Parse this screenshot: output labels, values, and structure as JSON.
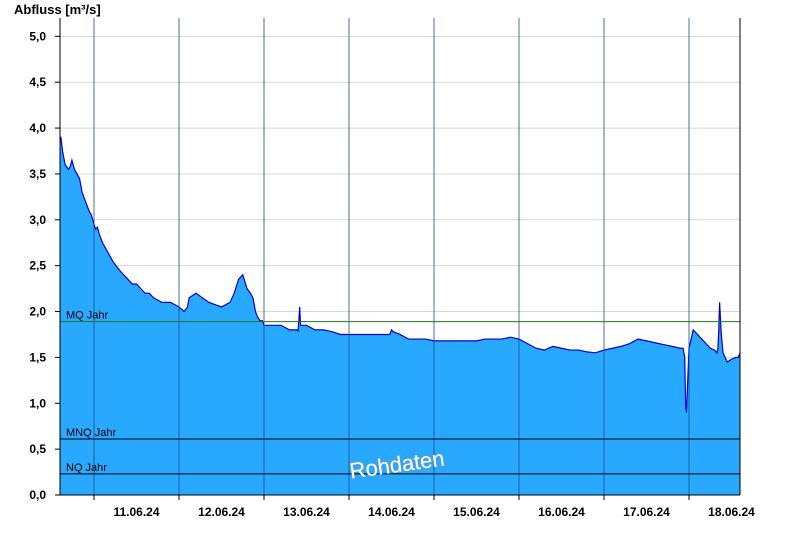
{
  "chart_data": {
    "type": "area",
    "ylabel": "Abfluss [m³/s]",
    "ylim": [
      0,
      5.2
    ],
    "y_ticks": [
      "0,0",
      "0,5",
      "1,0",
      "1,5",
      "2,0",
      "2,5",
      "3,0",
      "3,5",
      "4,0",
      "4,5",
      "5,0"
    ],
    "x_ticks": [
      "11.06.24",
      "12.06.24",
      "13.06.24",
      "14.06.24",
      "15.06.24",
      "16.06.24",
      "17.06.24",
      "18.06.24"
    ],
    "x_range_days": [
      10.6,
      18.6
    ],
    "grid": "horizontal",
    "series": [
      {
        "x": [
          10.6,
          10.61,
          10.63,
          10.66,
          10.7,
          10.72,
          10.74,
          10.77,
          10.8,
          10.83,
          10.86,
          10.9,
          10.94,
          10.97,
          11.0,
          11.02,
          11.04,
          11.06,
          11.08,
          11.1,
          11.13,
          11.16,
          11.19,
          11.22,
          11.26,
          11.3,
          11.35,
          11.4,
          11.45,
          11.5,
          11.55,
          11.6,
          11.65,
          11.7,
          11.8,
          11.9,
          12.0,
          12.06,
          12.1,
          12.12,
          12.2,
          12.35,
          12.5,
          12.6,
          12.65,
          12.7,
          12.75,
          12.8,
          12.84,
          12.87,
          12.89,
          12.9,
          12.92,
          12.95,
          12.98,
          13.0,
          13.03,
          13.06,
          13.1,
          13.15,
          13.2,
          13.3,
          13.4,
          13.4,
          13.41,
          13.42,
          13.43,
          13.5,
          13.6,
          13.7,
          13.8,
          13.9,
          14.0,
          14.1,
          14.2,
          14.3,
          14.4,
          14.48,
          14.5,
          14.52,
          14.6,
          14.7,
          14.8,
          14.9,
          15.0,
          15.1,
          15.2,
          15.3,
          15.4,
          15.5,
          15.6,
          15.7,
          15.8,
          15.9,
          16.0,
          16.1,
          16.2,
          16.3,
          16.35,
          16.4,
          16.5,
          16.6,
          16.7,
          16.8,
          16.9,
          17.0,
          17.1,
          17.2,
          17.3,
          17.4,
          17.5,
          17.6,
          17.7,
          17.8,
          17.9,
          17.93,
          17.95,
          17.96,
          17.97,
          18.0,
          18.05,
          18.1,
          18.15,
          18.2,
          18.25,
          18.3,
          18.33,
          18.34,
          18.35,
          18.36,
          18.38,
          18.4,
          18.45,
          18.5,
          18.55,
          18.58,
          18.6
        ],
        "values": [
          3.9,
          3.9,
          3.75,
          3.6,
          3.55,
          3.58,
          3.65,
          3.55,
          3.5,
          3.45,
          3.3,
          3.2,
          3.1,
          3.05,
          2.95,
          2.9,
          2.92,
          2.85,
          2.8,
          2.75,
          2.7,
          2.65,
          2.6,
          2.55,
          2.5,
          2.45,
          2.4,
          2.35,
          2.3,
          2.3,
          2.25,
          2.2,
          2.2,
          2.15,
          2.1,
          2.1,
          2.05,
          2.0,
          2.05,
          2.15,
          2.2,
          2.1,
          2.05,
          2.1,
          2.2,
          2.35,
          2.4,
          2.25,
          2.2,
          2.15,
          2.05,
          2.0,
          1.95,
          1.9,
          1.9,
          1.85,
          1.85,
          1.85,
          1.85,
          1.85,
          1.85,
          1.8,
          1.8,
          1.78,
          1.9,
          2.05,
          1.85,
          1.85,
          1.8,
          1.8,
          1.78,
          1.75,
          1.75,
          1.75,
          1.75,
          1.75,
          1.75,
          1.75,
          1.8,
          1.78,
          1.75,
          1.7,
          1.7,
          1.7,
          1.68,
          1.68,
          1.68,
          1.68,
          1.68,
          1.68,
          1.7,
          1.7,
          1.7,
          1.72,
          1.7,
          1.65,
          1.6,
          1.58,
          1.6,
          1.62,
          1.6,
          1.58,
          1.58,
          1.56,
          1.55,
          1.58,
          1.6,
          1.62,
          1.65,
          1.7,
          1.68,
          1.66,
          1.64,
          1.62,
          1.6,
          1.6,
          1.5,
          1.0,
          0.9,
          1.6,
          1.8,
          1.75,
          1.7,
          1.65,
          1.6,
          1.58,
          1.55,
          1.6,
          1.8,
          2.1,
          1.75,
          1.55,
          1.45,
          1.48,
          1.5,
          1.5,
          1.55
        ]
      }
    ],
    "reference_lines": [
      {
        "label": "MQ Jahr",
        "value": 1.89,
        "color": "#1c7a1c"
      },
      {
        "label": "MNQ Jahr",
        "value": 0.61,
        "color": "#000000"
      },
      {
        "label": "NQ Jahr",
        "value": 0.23,
        "color": "#000000"
      }
    ],
    "watermark": "Rohdaten",
    "colors": {
      "fill": "#29a8ff",
      "line": "#0000cc",
      "grid": "#d8d8d8",
      "axis": "#000000",
      "day_separator": "#1a4f80"
    }
  }
}
